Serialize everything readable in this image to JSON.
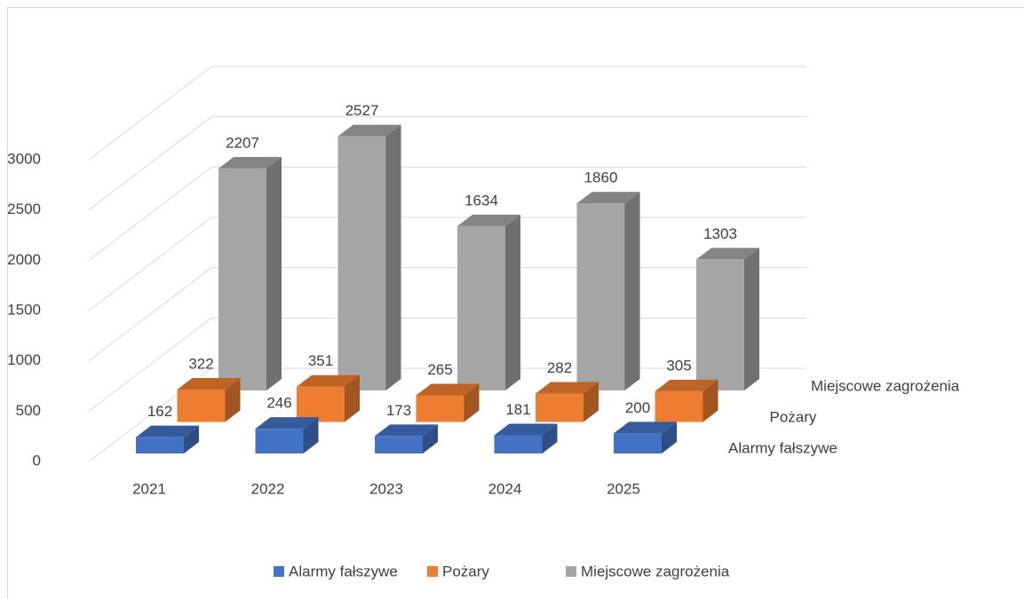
{
  "chart_data": {
    "type": "bar3d",
    "categories": [
      "2021",
      "2022",
      "2023",
      "2024",
      "2025"
    ],
    "series": [
      {
        "name": "Alarmy fałszywe",
        "color": "#4472c4",
        "values": [
          162,
          246,
          173,
          181,
          200
        ]
      },
      {
        "name": "Pożary",
        "color": "#ed7d31",
        "values": [
          322,
          351,
          265,
          282,
          305
        ]
      },
      {
        "name": "Miejscowe zagrożenia",
        "color": "#a5a5a5",
        "values": [
          2207,
          2527,
          1634,
          1860,
          1303
        ]
      }
    ],
    "ylim": [
      0,
      3000
    ],
    "yticks": [
      0,
      500,
      1000,
      1500,
      2000,
      2500,
      3000
    ],
    "grid": true,
    "legend": "bottom"
  }
}
